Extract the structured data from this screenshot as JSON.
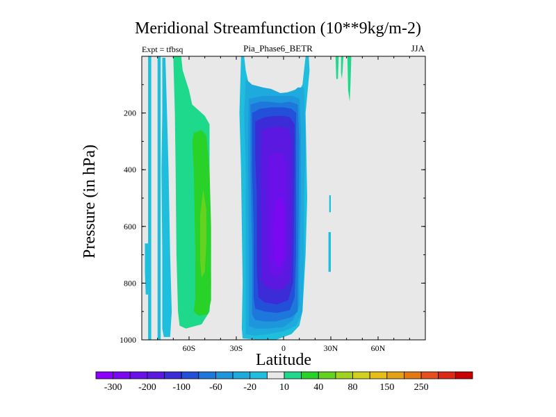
{
  "chart_data": {
    "type": "heatmap",
    "title": "Meridional Streamfunction (10**9kg/m-2)",
    "subtitle_left": "Expt = tfbsq",
    "subtitle_center": "Pia_Phase6_BETR",
    "subtitle_right": "JJA",
    "xlabel": "Latitude",
    "ylabel": "Pressure (in hPa)",
    "xlim": [
      -90,
      90
    ],
    "ylim": [
      0,
      1000
    ],
    "y_inverted": true,
    "x_ticks": [
      {
        "value": -60,
        "label": "60S"
      },
      {
        "value": -30,
        "label": "30S"
      },
      {
        "value": 0,
        "label": "0"
      },
      {
        "value": 30,
        "label": "30N"
      },
      {
        "value": 60,
        "label": "60N"
      }
    ],
    "y_ticks": [
      {
        "value": 200,
        "label": "200"
      },
      {
        "value": 400,
        "label": "400"
      },
      {
        "value": 600,
        "label": "600"
      },
      {
        "value": 800,
        "label": "800"
      },
      {
        "value": 1000,
        "label": "1000"
      }
    ],
    "background_color": "#e8e8e8",
    "colorbar": {
      "colors": [
        "#8c00ff",
        "#7a08f0",
        "#6a10e8",
        "#5a18e0",
        "#3c2cd8",
        "#2350d8",
        "#1e78dc",
        "#1e96dc",
        "#1eaadc",
        "#1ebedc",
        "#e8e8e8",
        "#1ed88c",
        "#28d228",
        "#64d21e",
        "#a0d21e",
        "#d2d21e",
        "#e6be14",
        "#e6a014",
        "#e67814",
        "#e6501e",
        "#dc2814",
        "#c80000"
      ],
      "labels": [
        "-300",
        "-200",
        "-100",
        "-60",
        "-20",
        "10",
        "40",
        "80",
        "150",
        "250"
      ],
      "label_boundaries": [
        1,
        3,
        5,
        7,
        9,
        11,
        13,
        15,
        17,
        19
      ]
    },
    "regions": [
      {
        "name": "sh-outer-cell-a",
        "level": -20,
        "color": "#1ebedc",
        "points": [
          [
            -86,
            0
          ],
          [
            -84,
            0
          ],
          [
            -84,
            1000
          ],
          [
            -86,
            1000
          ]
        ]
      },
      {
        "name": "sh-outer-cell-b",
        "level": -20,
        "color": "#1ebedc",
        "points": [
          [
            -80,
            0
          ],
          [
            -78,
            0
          ],
          [
            -78,
            1000
          ],
          [
            -80,
            1000
          ]
        ]
      },
      {
        "name": "sh-west-strip",
        "level": -20,
        "color": "#1ebedc",
        "points": [
          [
            -77,
            5
          ],
          [
            -75,
            5
          ],
          [
            -74,
            200
          ],
          [
            -73,
            400
          ],
          [
            -72,
            700
          ],
          [
            -71,
            900
          ],
          [
            -72,
            990
          ],
          [
            -76,
            990
          ],
          [
            -77,
            960
          ],
          [
            -77,
            700
          ],
          [
            -77.5,
            400
          ],
          [
            -77,
            200
          ]
        ]
      },
      {
        "name": "sh-fringe-left",
        "level": -20,
        "color": "#1ebedc",
        "points": [
          [
            -88,
            660
          ],
          [
            -86,
            660
          ],
          [
            -85.5,
            760
          ],
          [
            -86,
            840
          ],
          [
            -87.5,
            840
          ],
          [
            -88,
            760
          ]
        ]
      },
      {
        "name": "sh-ferrel-outer",
        "level": 10,
        "color": "#1ed88c",
        "points": [
          [
            -70,
            0
          ],
          [
            -65,
            0
          ],
          [
            -64,
            50
          ],
          [
            -60,
            120
          ],
          [
            -58,
            170
          ],
          [
            -54,
            190
          ],
          [
            -50,
            210
          ],
          [
            -47,
            240
          ],
          [
            -47,
            500
          ],
          [
            -46,
            800
          ],
          [
            -47,
            900
          ],
          [
            -52,
            945
          ],
          [
            -62,
            960
          ],
          [
            -66,
            950
          ],
          [
            -67,
            900
          ],
          [
            -68,
            700
          ],
          [
            -68.5,
            400
          ],
          [
            -69,
            200
          ]
        ]
      },
      {
        "name": "sh-ferrel-core",
        "level": 40,
        "color": "#28d228",
        "points": [
          [
            -52,
            260
          ],
          [
            -57,
            270
          ],
          [
            -58,
            300
          ],
          [
            -57,
            400
          ],
          [
            -56,
            700
          ],
          [
            -56,
            850
          ],
          [
            -57,
            900
          ],
          [
            -54,
            915
          ],
          [
            -48,
            910
          ],
          [
            -46,
            860
          ],
          [
            -46,
            600
          ],
          [
            -47,
            400
          ],
          [
            -49,
            280
          ]
        ]
      },
      {
        "name": "sh-ferrel-max",
        "level": 80,
        "color": "#64d21e",
        "points": [
          [
            -51,
            470
          ],
          [
            -53,
            560
          ],
          [
            -53,
            720
          ],
          [
            -52,
            780
          ],
          [
            -50,
            760
          ],
          [
            -49,
            660
          ],
          [
            -49,
            540
          ]
        ]
      },
      {
        "name": "hadley-cell-1",
        "level": -20,
        "color": "#1ebedc",
        "points": [
          [
            -27,
            0
          ],
          [
            -25,
            0
          ],
          [
            -24,
            50
          ],
          [
            -22,
            100
          ],
          [
            -15,
            115
          ],
          [
            -8,
            125
          ],
          [
            -2,
            130
          ],
          [
            2,
            128
          ],
          [
            6,
            120
          ],
          [
            9,
            115
          ],
          [
            11,
            110
          ],
          [
            12,
            100
          ],
          [
            14,
            0
          ],
          [
            16,
            0
          ],
          [
            16.5,
            50
          ],
          [
            14,
            200
          ],
          [
            15,
            500
          ],
          [
            14,
            700
          ],
          [
            13,
            800
          ],
          [
            12,
            900
          ],
          [
            10,
            950
          ],
          [
            5,
            980
          ],
          [
            -5,
            1000
          ],
          [
            -15,
            1000
          ],
          [
            -26,
            995
          ],
          [
            -26.5,
            960
          ],
          [
            -26,
            800
          ],
          [
            -27,
            400
          ],
          [
            -28,
            200
          ]
        ]
      },
      {
        "name": "hadley-cell-2",
        "level": -60,
        "color": "#1eaadc",
        "points": [
          [
            -24,
            80
          ],
          [
            -20,
            100
          ],
          [
            -13,
            110
          ],
          [
            -8,
            115
          ],
          [
            -2,
            130
          ],
          [
            6,
            125
          ],
          [
            9,
            110
          ],
          [
            13,
            110
          ],
          [
            14,
            300
          ],
          [
            13,
            500
          ],
          [
            13,
            700
          ],
          [
            12,
            900
          ],
          [
            8,
            950
          ],
          [
            0,
            970
          ],
          [
            -10,
            980
          ],
          [
            -18,
            985
          ],
          [
            -24,
            980
          ],
          [
            -24,
            700
          ],
          [
            -24,
            400
          ],
          [
            -25,
            200
          ]
        ]
      },
      {
        "name": "hadley-cell-3",
        "level": -100,
        "color": "#1e96dc",
        "points": [
          [
            -22,
            150
          ],
          [
            -18,
            145
          ],
          [
            -13,
            140
          ],
          [
            -8,
            140
          ],
          [
            0,
            140
          ],
          [
            6,
            140
          ],
          [
            10,
            150
          ],
          [
            11,
            250
          ],
          [
            11,
            500
          ],
          [
            10,
            750
          ],
          [
            10,
            880
          ],
          [
            6,
            930
          ],
          [
            0,
            955
          ],
          [
            -10,
            960
          ],
          [
            -18,
            960
          ],
          [
            -22,
            950
          ],
          [
            -22,
            700
          ],
          [
            -22.5,
            400
          ],
          [
            -22.5,
            250
          ]
        ]
      },
      {
        "name": "hadley-cell-4",
        "level": -120,
        "color": "#1e78dc",
        "points": [
          [
            -21,
            170
          ],
          [
            -15,
            160
          ],
          [
            -10,
            160
          ],
          [
            -2,
            165
          ],
          [
            4,
            160
          ],
          [
            9,
            170
          ],
          [
            10,
            300
          ],
          [
            9.5,
            600
          ],
          [
            9,
            800
          ],
          [
            9,
            900
          ],
          [
            5,
            920
          ],
          [
            -5,
            935
          ],
          [
            -12,
            935
          ],
          [
            -18,
            930
          ],
          [
            -20,
            910
          ],
          [
            -20,
            700
          ],
          [
            -21,
            400
          ]
        ]
      },
      {
        "name": "hadley-cell-5",
        "level": -140,
        "color": "#2350d8",
        "points": [
          [
            -20,
            200
          ],
          [
            -15,
            185
          ],
          [
            -8,
            180
          ],
          [
            0,
            180
          ],
          [
            5,
            185
          ],
          [
            8,
            200
          ],
          [
            8,
            400
          ],
          [
            8,
            700
          ],
          [
            7,
            850
          ],
          [
            4,
            895
          ],
          [
            -4,
            905
          ],
          [
            -12,
            900
          ],
          [
            -18,
            890
          ],
          [
            -19,
            850
          ],
          [
            -19,
            600
          ],
          [
            -20,
            400
          ]
        ]
      },
      {
        "name": "hadley-cell-6",
        "level": -160,
        "color": "#3c2cd8",
        "points": [
          [
            -18,
            230
          ],
          [
            -12,
            215
          ],
          [
            -6,
            210
          ],
          [
            0,
            210
          ],
          [
            4,
            215
          ],
          [
            7,
            240
          ],
          [
            7,
            400
          ],
          [
            6.5,
            650
          ],
          [
            6,
            800
          ],
          [
            3,
            860
          ],
          [
            -4,
            875
          ],
          [
            -12,
            868
          ],
          [
            -16,
            850
          ],
          [
            -17,
            750
          ],
          [
            -17,
            500
          ],
          [
            -18,
            350
          ]
        ]
      },
      {
        "name": "hadley-cell-7",
        "level": -200,
        "color": "#5a18e0",
        "points": [
          [
            -14,
            260
          ],
          [
            -8,
            250
          ],
          [
            -2,
            248
          ],
          [
            3,
            255
          ],
          [
            5,
            290
          ],
          [
            5,
            500
          ],
          [
            5,
            700
          ],
          [
            4,
            790
          ],
          [
            0,
            820
          ],
          [
            -6,
            825
          ],
          [
            -11,
            815
          ],
          [
            -14,
            790
          ],
          [
            -14,
            600
          ],
          [
            -14.5,
            400
          ]
        ]
      },
      {
        "name": "hadley-cell-8",
        "level": -250,
        "color": "#6a10e8",
        "points": [
          [
            -9,
            350
          ],
          [
            -4,
            340
          ],
          [
            0,
            345
          ],
          [
            2,
            380
          ],
          [
            2,
            550
          ],
          [
            2,
            700
          ],
          [
            0,
            760
          ],
          [
            -4,
            780
          ],
          [
            -8,
            770
          ],
          [
            -10,
            720
          ],
          [
            -10,
            550
          ],
          [
            -10,
            420
          ]
        ]
      },
      {
        "name": "hadley-cell-core",
        "level": -300,
        "color": "#7a08f0",
        "points": [
          [
            -4,
            500
          ],
          [
            -1,
            495
          ],
          [
            1,
            540
          ],
          [
            1,
            660
          ],
          [
            0,
            720
          ],
          [
            -3,
            745
          ],
          [
            -6,
            720
          ],
          [
            -7,
            620
          ],
          [
            -6,
            540
          ]
        ]
      },
      {
        "name": "nh-strip-a",
        "level": -20,
        "color": "#1ebedc",
        "points": [
          [
            29,
            490
          ],
          [
            30,
            490
          ],
          [
            30,
            550
          ],
          [
            29,
            550
          ]
        ]
      },
      {
        "name": "nh-strip-b",
        "level": -20,
        "color": "#1ebedc",
        "points": [
          [
            28.5,
            620
          ],
          [
            30,
            620
          ],
          [
            30,
            760
          ],
          [
            28.5,
            760
          ]
        ]
      },
      {
        "name": "nh-upper-a",
        "level": 10,
        "color": "#1ed88c",
        "points": [
          [
            33,
            0
          ],
          [
            35,
            0
          ],
          [
            34.5,
            80
          ],
          [
            33.5,
            80
          ]
        ]
      },
      {
        "name": "nh-upper-b",
        "level": 10,
        "color": "#1ed88c",
        "points": [
          [
            36.5,
            0
          ],
          [
            38,
            0
          ],
          [
            37.5,
            50
          ],
          [
            37,
            80
          ],
          [
            36.5,
            60
          ]
        ]
      },
      {
        "name": "nh-upper-c",
        "level": 10,
        "color": "#1ed88c",
        "points": [
          [
            40.5,
            0
          ],
          [
            43,
            0
          ],
          [
            42.5,
            100
          ],
          [
            42,
            160
          ],
          [
            41,
            120
          ]
        ]
      }
    ]
  }
}
